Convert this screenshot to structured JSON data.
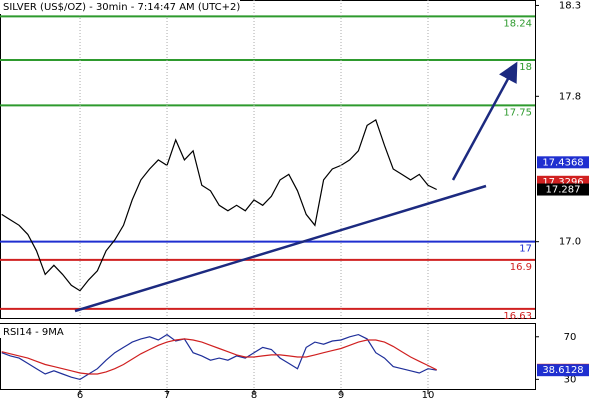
{
  "chart_data": [
    {
      "type": "line",
      "title": "SILVER (US$/OZ) - 30min - 7:14:47 AM (UTC+2)",
      "x": [
        5.1,
        5.2,
        5.3,
        5.4,
        5.5,
        5.6,
        5.7,
        5.8,
        5.9,
        6.0,
        6.1,
        6.2,
        6.3,
        6.4,
        6.5,
        6.6,
        6.7,
        6.8,
        6.9,
        7.0,
        7.1,
        7.2,
        7.3,
        7.4,
        7.5,
        7.6,
        7.7,
        7.8,
        7.9,
        8.0,
        8.1,
        8.2,
        8.3,
        8.4,
        8.5,
        8.6,
        8.7,
        8.8,
        8.9,
        9.0,
        9.1,
        9.2,
        9.3,
        9.4,
        9.5,
        9.6,
        9.7,
        9.8,
        9.9,
        10.0,
        10.1
      ],
      "series": [
        {
          "color": "#000000",
          "values": [
            17.15,
            17.12,
            17.09,
            17.04,
            16.95,
            16.82,
            16.87,
            16.82,
            16.76,
            16.73,
            16.79,
            16.84,
            16.95,
            17.01,
            17.09,
            17.23,
            17.34,
            17.4,
            17.45,
            17.42,
            17.56,
            17.45,
            17.5,
            17.31,
            17.28,
            17.2,
            17.17,
            17.2,
            17.17,
            17.23,
            17.2,
            17.25,
            17.34,
            17.37,
            17.28,
            17.15,
            17.09,
            17.34,
            17.4,
            17.42,
            17.45,
            17.5,
            17.64,
            17.67,
            17.53,
            17.4,
            17.37,
            17.34,
            17.37,
            17.31,
            17.287
          ]
        }
      ],
      "xlim": [
        5.08,
        11.23
      ],
      "ylim": [
        16.58,
        18.33
      ],
      "yticks": [
        18.3,
        17.8,
        {
          "value": 17,
          "label": "17.0"
        }
      ],
      "levels": [
        {
          "value": 18.24,
          "color": "#2e9a2e"
        },
        {
          "value": 18,
          "color": "#2e9a2e"
        },
        {
          "value": 17.75,
          "color": "#2e9a2e"
        },
        {
          "value": 17,
          "color": "#1f2fd0"
        },
        {
          "value": 16.9,
          "color": "#d02020"
        },
        {
          "value": 16.63,
          "color": "#d02020"
        }
      ],
      "price_markers": [
        {
          "value": 17.4368,
          "color": "#1f2fd0"
        },
        {
          "value": 17.3296,
          "color": "#d02020"
        },
        {
          "value": 17.287,
          "color": "#000000"
        }
      ]
    },
    {
      "type": "line",
      "title": "RSI14 - 9MA",
      "x": [
        5.1,
        5.2,
        5.3,
        5.4,
        5.5,
        5.6,
        5.7,
        5.8,
        5.9,
        6.0,
        6.1,
        6.2,
        6.3,
        6.4,
        6.5,
        6.6,
        6.7,
        6.8,
        6.9,
        7.0,
        7.1,
        7.2,
        7.3,
        7.4,
        7.5,
        7.6,
        7.7,
        7.8,
        7.9,
        8.0,
        8.1,
        8.2,
        8.3,
        8.4,
        8.5,
        8.6,
        8.7,
        8.8,
        8.9,
        9.0,
        9.1,
        9.2,
        9.3,
        9.4,
        9.5,
        9.6,
        9.7,
        9.8,
        9.9,
        10.0,
        10.1
      ],
      "series": [
        {
          "color": "#1f2f9a",
          "values": [
            55,
            52,
            50,
            45,
            40,
            35,
            38,
            35,
            32,
            30,
            35,
            40,
            48,
            55,
            60,
            65,
            68,
            70,
            67,
            72,
            66,
            68,
            55,
            52,
            48,
            50,
            48,
            52,
            50,
            55,
            60,
            58,
            50,
            45,
            40,
            60,
            65,
            63,
            66,
            67,
            70,
            72,
            68,
            55,
            50,
            42,
            40,
            38,
            36,
            40,
            38.6128
          ]
        },
        {
          "color": "#d02020",
          "values": [
            56,
            54,
            52,
            50,
            47,
            44,
            42,
            40,
            38,
            36,
            35,
            35,
            37,
            40,
            44,
            49,
            54,
            58,
            62,
            65,
            67,
            68,
            67,
            65,
            62,
            59,
            56,
            53,
            51,
            51,
            52,
            53,
            53,
            52,
            51,
            51,
            53,
            55,
            57,
            59,
            62,
            65,
            67,
            67,
            65,
            61,
            56,
            51,
            47,
            43,
            38.9855
          ]
        }
      ],
      "xlim": [
        5.08,
        11.23
      ],
      "ylim": [
        20,
        82
      ],
      "xticks": [
        6,
        7,
        8,
        9,
        10
      ],
      "yticks": [
        70,
        30
      ],
      "price_markers": [
        {
          "value": 38.9855,
          "color": "#d02020"
        },
        {
          "value": 38.6128,
          "color": "#1f2fd0"
        }
      ]
    }
  ]
}
